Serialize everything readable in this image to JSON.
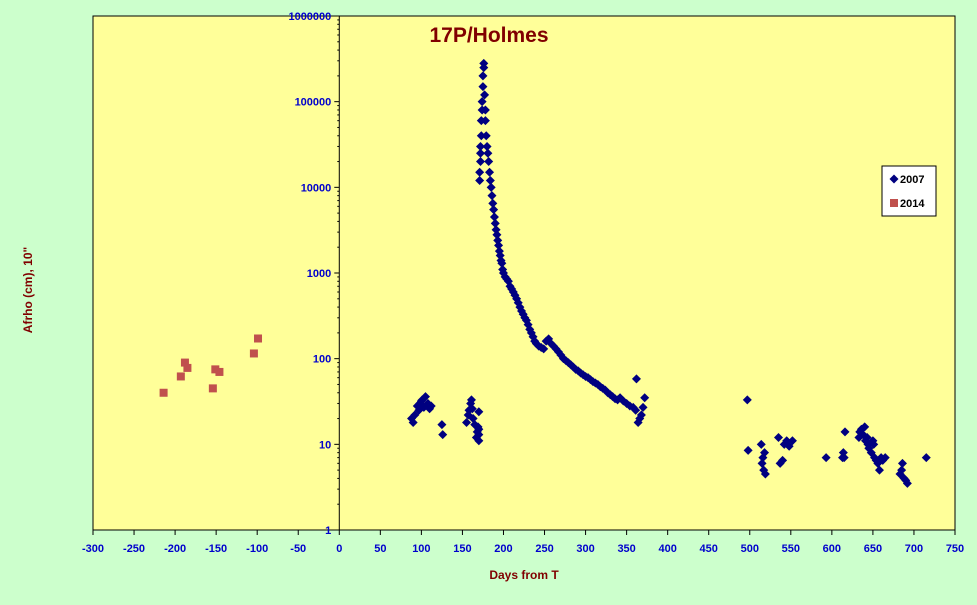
{
  "colors": {
    "page_background": "#ccffcc",
    "plot_background": "#ffff99",
    "axis_text": "#0000cc",
    "title_text": "#800000",
    "axis_label_text": "#800000",
    "series_2007": "#000080",
    "series_2014": "#c0504d"
  },
  "chart_data": {
    "type": "scatter",
    "title": "17P/Holmes",
    "xlabel": "Days from T",
    "ylabel": "Afrho (cm), 10\"",
    "xlim": [
      -300,
      750
    ],
    "ylim": [
      1,
      1000000
    ],
    "y_scale": "log",
    "grid": false,
    "legend_position": "right",
    "x_ticks": [
      "-300",
      "-250",
      "-200",
      "-150",
      "-100",
      "-50",
      "0",
      "50",
      "100",
      "150",
      "200",
      "250",
      "300",
      "350",
      "400",
      "450",
      "500",
      "550",
      "600",
      "650",
      "700",
      "750"
    ],
    "y_ticks": [
      "1",
      "10",
      "100",
      "1000",
      "10000",
      "100000",
      "1000000"
    ],
    "series": [
      {
        "name": "2007",
        "marker": "diamond",
        "x": [
          88,
          90,
          92,
          95,
          97,
          98,
          100,
          101,
          103,
          105,
          108,
          110,
          112,
          125,
          126,
          155,
          157,
          158,
          160,
          161,
          162,
          163,
          165,
          167,
          168,
          169,
          170,
          170,
          170,
          170,
          171,
          171,
          172,
          172,
          172,
          173,
          173,
          174,
          174,
          175,
          175,
          176,
          176,
          177,
          178,
          178,
          179,
          180,
          181,
          182,
          183,
          184,
          185,
          186,
          187,
          188,
          189,
          190,
          191,
          192,
          193,
          194,
          195,
          196,
          197,
          198,
          199,
          200,
          202,
          204,
          206,
          208,
          210,
          212,
          214,
          216,
          218,
          220,
          222,
          224,
          226,
          228,
          230,
          232,
          234,
          236,
          238,
          240,
          243,
          246,
          249,
          252,
          255,
          258,
          261,
          264,
          267,
          270,
          273,
          276,
          279,
          282,
          285,
          288,
          291,
          294,
          297,
          300,
          303,
          306,
          309,
          312,
          315,
          318,
          321,
          324,
          327,
          330,
          333,
          336,
          339,
          342,
          346,
          350,
          354,
          358,
          361,
          362,
          364,
          366,
          368,
          370,
          372,
          497,
          498,
          514,
          515,
          516,
          517,
          518,
          519,
          535,
          537,
          540,
          542,
          545,
          548,
          552,
          593,
          613,
          614,
          615,
          616,
          633,
          634,
          636,
          638,
          640,
          641,
          643,
          644,
          645,
          648,
          650,
          651,
          652,
          654,
          656,
          658,
          660,
          662,
          665,
          683,
          685,
          686,
          688,
          690,
          692,
          715
        ],
        "y": [
          20,
          18,
          22,
          28,
          25,
          30,
          32,
          33,
          27,
          36,
          30,
          26,
          28,
          17,
          13,
          18,
          22,
          25,
          30,
          33,
          26,
          20,
          17,
          12,
          14,
          16,
          11,
          24,
          15,
          13,
          12000,
          15000,
          20000,
          25000,
          30000,
          40000,
          60000,
          80000,
          100000,
          150000,
          200000,
          250000,
          280000,
          120000,
          80000,
          60000,
          40000,
          30000,
          25000,
          20000,
          15000,
          12000,
          10000,
          8000,
          6500,
          5500,
          4500,
          3800,
          3200,
          2800,
          2400,
          2100,
          1800,
          1600,
          1400,
          1300,
          1100,
          1000,
          900,
          850,
          800,
          700,
          650,
          600,
          550,
          500,
          450,
          400,
          360,
          330,
          300,
          280,
          250,
          220,
          200,
          180,
          160,
          150,
          140,
          135,
          130,
          160,
          170,
          150,
          140,
          130,
          120,
          110,
          100,
          95,
          90,
          85,
          80,
          75,
          72,
          68,
          65,
          62,
          60,
          57,
          54,
          52,
          50,
          47,
          45,
          43,
          40,
          38,
          36,
          34,
          33,
          35,
          32,
          30,
          28,
          27,
          25,
          58,
          18,
          20,
          22,
          27,
          35,
          33,
          8.5,
          10,
          6,
          7,
          5,
          8,
          4.5,
          12,
          6,
          6.5,
          10,
          11,
          9.5,
          11,
          7,
          7,
          8,
          7,
          14,
          12,
          14,
          15,
          13,
          16,
          11,
          12,
          10,
          9,
          8,
          11,
          10,
          7,
          6.5,
          6,
          5,
          7,
          6.5,
          7,
          4.5,
          5,
          6,
          4,
          3.8,
          3.5,
          7
        ]
      },
      {
        "name": "2014",
        "marker": "square",
        "x": [
          -214,
          -193,
          -188,
          -185,
          -154,
          -151,
          -146,
          -104,
          -99
        ],
        "y": [
          40,
          62,
          90,
          78,
          45,
          75,
          70,
          115,
          172
        ]
      }
    ]
  }
}
